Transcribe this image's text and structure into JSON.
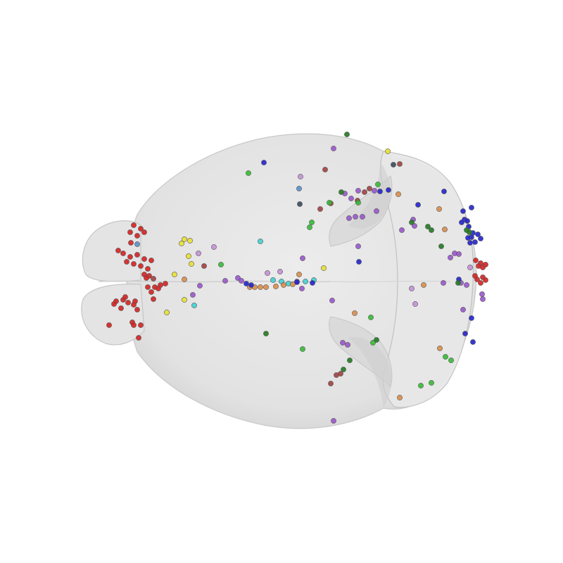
{
  "view": {
    "background": "#ffffff",
    "brain_fill": "#e6e6e6",
    "brain_shade": "#d2d2d2",
    "brain_outline": "#c4c4c4",
    "point_outline": "#555555"
  },
  "palette": {
    "red": "#d42020",
    "blue": "#2222cc",
    "purple": "#9955cc",
    "lavender": "#c490d8",
    "green": "#33bb33",
    "darkgreen": "#1f7a1f",
    "orange": "#d98c4a",
    "yellow": "#e8e030",
    "cyan": "#40d0d0",
    "steelblue": "#5a8ecc",
    "brown": "#a04040",
    "slate": "#3a4a5a"
  },
  "point_clusters": [
    {
      "group": "olfactory-dorsal",
      "color": "red",
      "count": 40
    },
    {
      "group": "midline",
      "color": "orange",
      "count": 12
    },
    {
      "group": "midline",
      "color": "cyan",
      "count": 6
    },
    {
      "group": "midline",
      "color": "blue",
      "count": 4
    },
    {
      "group": "cerebellum",
      "color": "blue",
      "count": 20
    },
    {
      "group": "cerebellum",
      "color": "purple",
      "count": 22
    },
    {
      "group": "cerebellum",
      "color": "green",
      "count": 14
    },
    {
      "group": "cerebellum",
      "color": "red",
      "count": 10
    },
    {
      "group": "cortex",
      "color": "yellow",
      "count": 10
    },
    {
      "group": "cortex",
      "color": "lavender",
      "count": 8
    }
  ]
}
